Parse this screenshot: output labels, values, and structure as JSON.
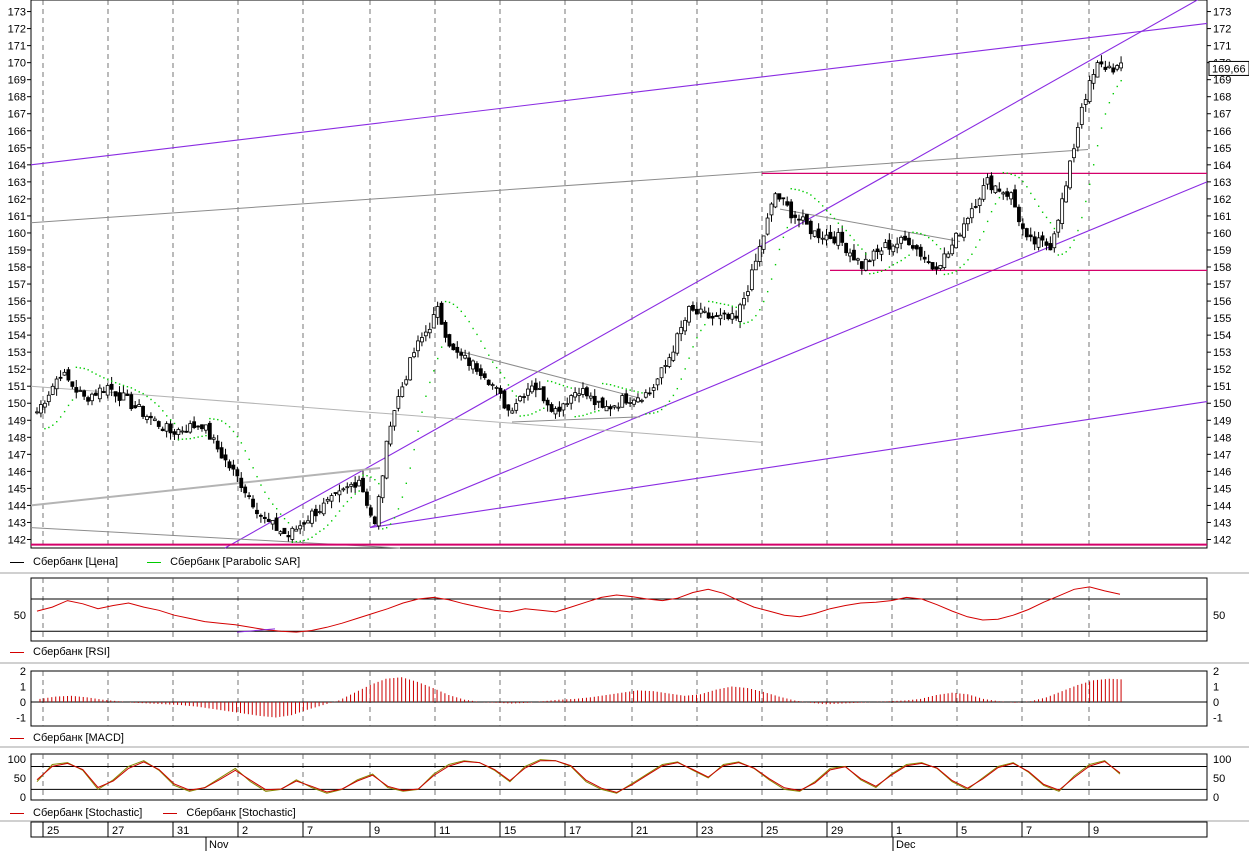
{
  "colors": {
    "price": "#000000",
    "sar": "#00cc00",
    "channel": "#8a2be2",
    "horizontal": "#d4006a",
    "gray": "#8c8c8c",
    "lightgray": "#b4b4b4",
    "rsi": "#d40000",
    "macd": "#cc0000",
    "stoch1": "#cc0000",
    "stoch2": "#888800"
  },
  "legend": {
    "price": "Сбербанк [Цена]",
    "sar": "Сбербанк [Parabolic SAR]",
    "rsi": "Сбербанк [RSI]",
    "macd": "Сбербанк [MACD]",
    "stoch1": "Сбербанк [Stochastic]",
    "stoch2": "Сбербанк [Stochastic]"
  },
  "last_price_label": "169,66",
  "chart_data": [
    {
      "type": "candlestick",
      "name": "price-panel",
      "y_ticks": [
        "142",
        "143",
        "144",
        "145",
        "146",
        "147",
        "148",
        "149",
        "150",
        "151",
        "152",
        "153",
        "154",
        "155",
        "156",
        "157",
        "158",
        "159",
        "160",
        "161",
        "162",
        "163",
        "164",
        "165",
        "166",
        "167",
        "168",
        "169",
        "170",
        "171",
        "172",
        "173"
      ],
      "ylim": [
        141.5,
        173.2
      ],
      "x_date_labels": [
        "25",
        "27",
        "31",
        "2",
        "7",
        "9",
        "11",
        "15",
        "17",
        "21",
        "23",
        "25",
        "29",
        "1",
        "5",
        "7",
        "9"
      ],
      "x_month_labels": [
        "Nov",
        "Dec"
      ],
      "key_levels": {
        "support": 141.7,
        "range_high": 163.5,
        "range_low": 157.8,
        "last_price": 169.66,
        "period_high": 170.9,
        "period_low": 141.9
      },
      "close_path": [
        {
          "session": 0,
          "close": 149.5
        },
        {
          "session": 6,
          "close": 151.8
        },
        {
          "session": 12,
          "close": 150.3
        },
        {
          "session": 18,
          "close": 151.0
        },
        {
          "session": 26,
          "close": 149.6
        },
        {
          "session": 34,
          "close": 148.3
        },
        {
          "session": 42,
          "close": 148.8
        },
        {
          "session": 48,
          "close": 146.6
        },
        {
          "session": 52,
          "close": 145.3
        },
        {
          "session": 58,
          "close": 143.1
        },
        {
          "session": 64,
          "close": 142.2
        },
        {
          "session": 70,
          "close": 143.5
        },
        {
          "session": 76,
          "close": 144.4
        },
        {
          "session": 82,
          "close": 145.6
        },
        {
          "session": 86,
          "close": 142.8
        },
        {
          "session": 90,
          "close": 149.0
        },
        {
          "session": 96,
          "close": 153.0
        },
        {
          "session": 102,
          "close": 155.4
        },
        {
          "session": 106,
          "close": 153.0
        },
        {
          "session": 114,
          "close": 151.8
        },
        {
          "session": 120,
          "close": 149.6
        },
        {
          "session": 126,
          "close": 151.2
        },
        {
          "session": 132,
          "close": 149.6
        },
        {
          "session": 138,
          "close": 150.9
        },
        {
          "session": 144,
          "close": 149.6
        },
        {
          "session": 150,
          "close": 150.3
        },
        {
          "session": 156,
          "close": 150.6
        },
        {
          "session": 160,
          "close": 152.2
        },
        {
          "session": 166,
          "close": 155.4
        },
        {
          "session": 172,
          "close": 155.0
        },
        {
          "session": 178,
          "close": 154.9
        },
        {
          "session": 182,
          "close": 157.5
        },
        {
          "session": 188,
          "close": 162.3
        },
        {
          "session": 192,
          "close": 161.2
        },
        {
          "session": 198,
          "close": 160.0
        },
        {
          "session": 204,
          "close": 159.7
        },
        {
          "session": 210,
          "close": 158.1
        },
        {
          "session": 216,
          "close": 159.2
        },
        {
          "session": 222,
          "close": 159.6
        },
        {
          "session": 228,
          "close": 158.0
        },
        {
          "session": 232,
          "close": 158.8
        },
        {
          "session": 238,
          "close": 161.5
        },
        {
          "session": 242,
          "close": 163.0
        },
        {
          "session": 248,
          "close": 162.2
        },
        {
          "session": 252,
          "close": 159.5
        },
        {
          "session": 258,
          "close": 159.3
        },
        {
          "session": 262,
          "close": 162.7
        },
        {
          "session": 266,
          "close": 167.5
        },
        {
          "session": 270,
          "close": 169.8
        },
        {
          "session": 276,
          "close": 169.66
        }
      ]
    },
    {
      "type": "line",
      "name": "rsi-panel",
      "y_ticks": [
        "50"
      ],
      "ylim": [
        18,
        96
      ],
      "reference_lines": [
        70,
        30
      ],
      "values": [
        55,
        60,
        68,
        64,
        58,
        62,
        65,
        60,
        56,
        50,
        46,
        42,
        40,
        38,
        35,
        32,
        30,
        29,
        31,
        35,
        40,
        46,
        52,
        58,
        65,
        70,
        72,
        69,
        64,
        60,
        56,
        54,
        58,
        56,
        54,
        60,
        66,
        72,
        75,
        73,
        70,
        68,
        71,
        78,
        82,
        77,
        68,
        60,
        55,
        50,
        48,
        52,
        58,
        62,
        65,
        66,
        68,
        72,
        70,
        63,
        55,
        48,
        44,
        45,
        50,
        57,
        66,
        74,
        82,
        85,
        80,
        76
      ]
    },
    {
      "type": "bar",
      "name": "macd-panel",
      "y_ticks": [
        "2",
        "1",
        "0",
        "-1"
      ],
      "ylim": [
        -1.4,
        2.1
      ],
      "values": [
        0.2,
        0.35,
        0.4,
        0.3,
        0.15,
        0.05,
        -0.05,
        -0.1,
        -0.15,
        -0.2,
        -0.3,
        -0.45,
        -0.6,
        -0.75,
        -0.9,
        -1.0,
        -0.85,
        -0.5,
        -0.2,
        0.1,
        0.6,
        1.1,
        1.5,
        1.6,
        1.3,
        0.9,
        0.45,
        0.15,
        0.0,
        -0.05,
        -0.1,
        -0.05,
        0.05,
        0.15,
        0.2,
        0.3,
        0.45,
        0.6,
        0.75,
        0.7,
        0.55,
        0.4,
        0.5,
        0.8,
        1.0,
        0.9,
        0.65,
        0.35,
        0.1,
        -0.05,
        -0.15,
        -0.1,
        -0.05,
        0.0,
        0.05,
        0.1,
        0.2,
        0.45,
        0.6,
        0.5,
        0.2,
        0.05,
        -0.05,
        0.05,
        0.3,
        0.7,
        1.1,
        1.4,
        1.5,
        1.45
      ]
    },
    {
      "type": "line",
      "name": "stochastic-panel",
      "y_ticks": [
        "100",
        "50",
        "0"
      ],
      "ylim": [
        -5,
        110
      ],
      "reference_lines": [
        80,
        20
      ],
      "series": [
        {
          "values": [
            40,
            85,
            90,
            70,
            20,
            45,
            80,
            95,
            70,
            30,
            15,
            25,
            50,
            75,
            40,
            15,
            20,
            45,
            25,
            10,
            20,
            45,
            60,
            25,
            15,
            20,
            60,
            85,
            95,
            90,
            70,
            40,
            80,
            98,
            95,
            80,
            40,
            20,
            10,
            35,
            60,
            85,
            92,
            70,
            50,
            85,
            92,
            75,
            45,
            20,
            15,
            40,
            75,
            80,
            45,
            25,
            60,
            85,
            90,
            75,
            40,
            20,
            50,
            80,
            90,
            65,
            30,
            15,
            55,
            85,
            95,
            60
          ]
        },
        {
          "values": [
            45,
            80,
            88,
            72,
            25,
            42,
            75,
            92,
            72,
            34,
            18,
            24,
            46,
            70,
            44,
            19,
            21,
            42,
            28,
            13,
            21,
            42,
            57,
            28,
            17,
            21,
            56,
            81,
            93,
            90,
            72,
            43,
            76,
            95,
            95,
            82,
            44,
            23,
            12,
            32,
            57,
            82,
            90,
            72,
            52,
            82,
            90,
            76,
            48,
            24,
            17,
            37,
            71,
            79,
            48,
            28,
            57,
            82,
            88,
            76,
            43,
            23,
            47,
            77,
            88,
            67,
            33,
            18,
            51,
            81,
            93,
            63
          ]
        }
      ]
    }
  ]
}
